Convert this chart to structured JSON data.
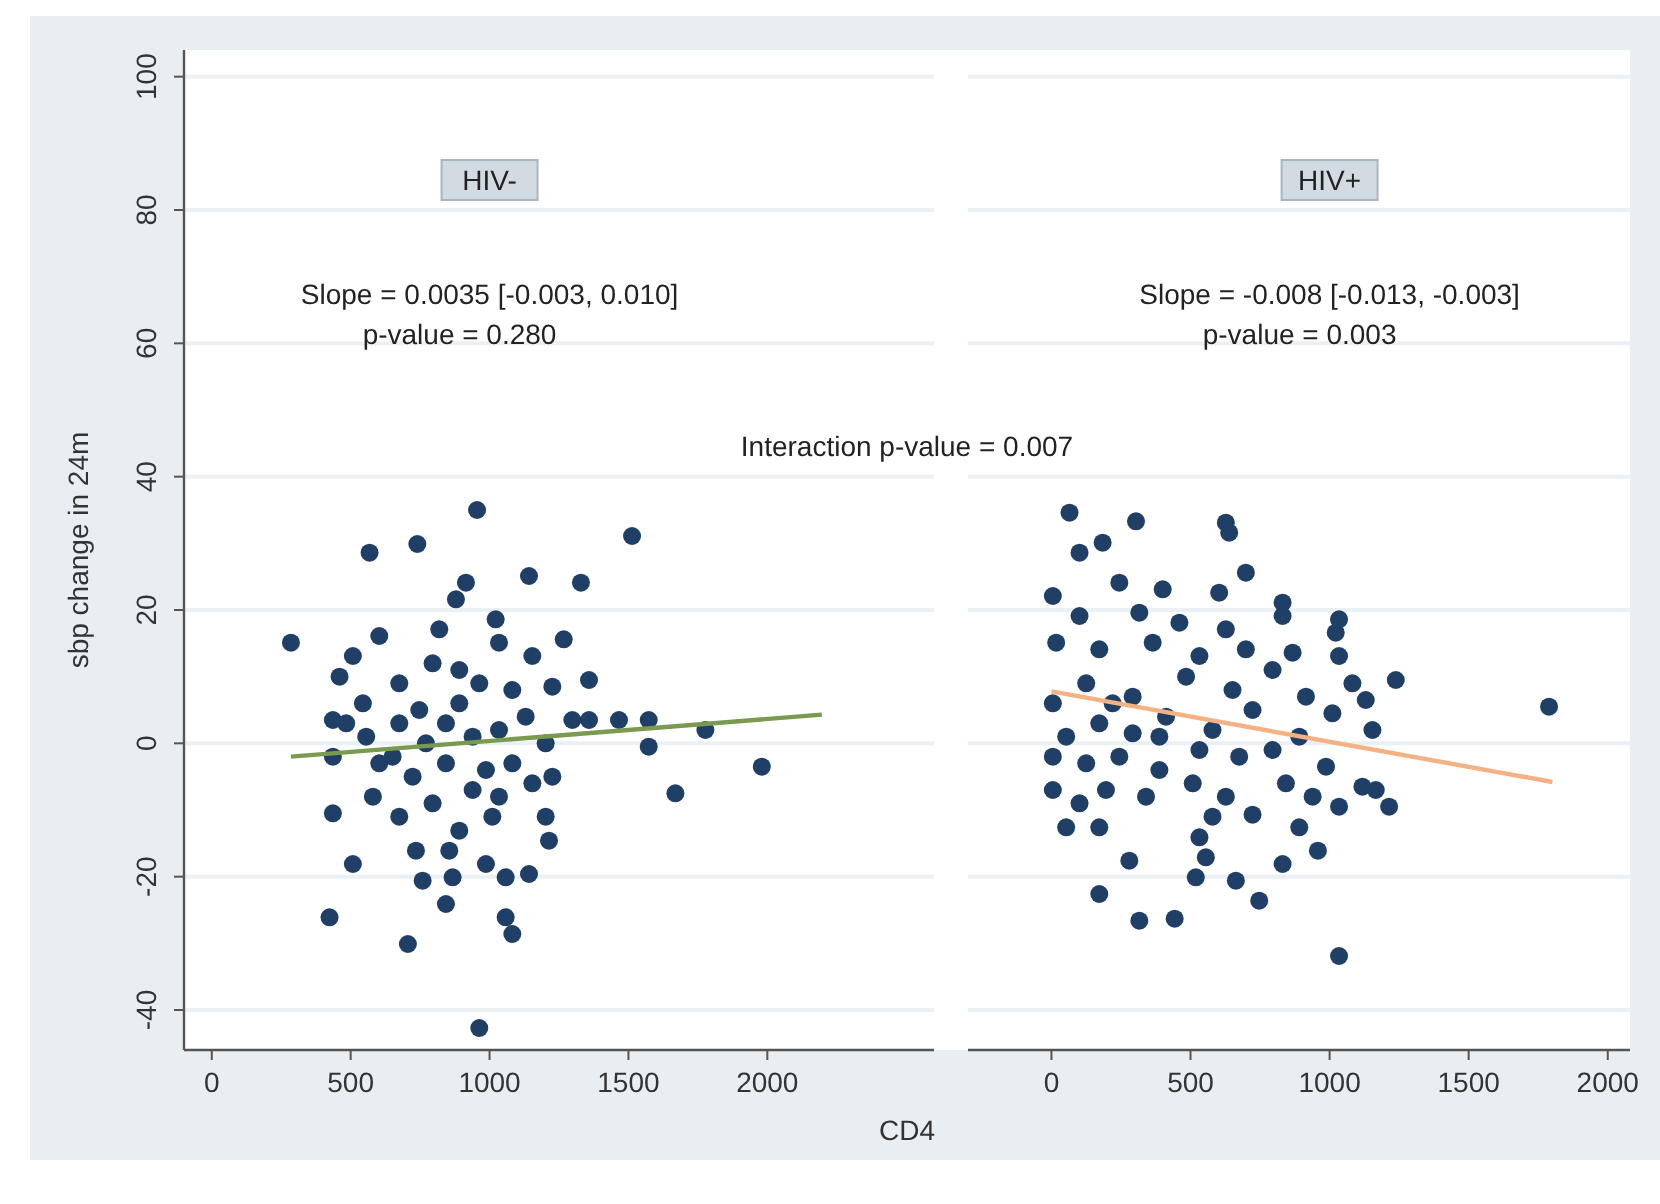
{
  "chart_data": [
    {
      "type": "scatter",
      "title": "HIV-",
      "ylabel": "sbp change in 24m",
      "xlabel": "CD4",
      "xlim": [
        -100,
        2600
      ],
      "xticks": [
        0,
        500,
        1000,
        1500,
        2000
      ],
      "ylim": [
        -46,
        104
      ],
      "yticks": [
        -40,
        -20,
        0,
        20,
        40,
        60,
        80,
        100
      ],
      "grid": "y",
      "annotations": [
        "Slope = 0.0035 [-0.003, 0.010]",
        "p-value = 0.280",
        "Interaction p-value = 0.007"
      ],
      "series": [
        {
          "marker": "circle",
          "color": "#1f3f66",
          "x": [
            955,
            568,
            740,
            1513,
            1142,
            1329,
            915,
            879,
            285,
            508,
            603,
            819,
            1022,
            1034,
            1154,
            1267,
            460,
            1358,
            436,
            544,
            675,
            795,
            891,
            963,
            1082,
            1226,
            1298,
            1358,
            1466,
            1573,
            1777,
            1573,
            1980,
            1669,
            436,
            556,
            675,
            747,
            843,
            939,
            1034,
            1130,
            1202,
            603,
            723,
            843,
            987,
            1082,
            1154,
            1226,
            436,
            580,
            675,
            795,
            891,
            1010,
            1202,
            1214,
            508,
            735,
            759,
            855,
            867,
            987,
            1058,
            1142,
            843,
            424,
            1058,
            1082,
            706,
            963,
            484,
            651,
            939,
            1034,
            891,
            771
          ],
          "values": [
            35,
            28.6,
            29.9,
            31.1,
            25.1,
            24.1,
            24.1,
            21.6,
            15.1,
            13.1,
            16.1,
            17.1,
            18.6,
            15.1,
            13.1,
            15.6,
            10,
            9.5,
            3.5,
            6,
            9,
            12,
            11,
            9,
            8,
            8.5,
            3.5,
            3.5,
            3.5,
            3.5,
            2,
            -0.5,
            -3.5,
            -7.5,
            -2,
            1,
            3,
            5,
            3,
            1,
            2,
            4,
            0,
            -3,
            -5,
            -3,
            -4,
            -3,
            -6,
            -5,
            -10.5,
            -8,
            -11,
            -9,
            -13.1,
            -11,
            -11,
            -14.6,
            -18.1,
            -16.1,
            -20.6,
            -16.1,
            -20.1,
            -18.1,
            -20.1,
            -19.6,
            -24.1,
            -26.1,
            -26.1,
            -28.6,
            -30.1,
            -42.7,
            3,
            -2,
            -7,
            -8,
            6,
            0
          ]
        },
        {
          "type": "line",
          "color": "#7a9a50",
          "x": [
            285,
            2196
          ],
          "values": [
            -2.0,
            4.3
          ]
        }
      ]
    },
    {
      "type": "scatter",
      "title": "HIV+",
      "xlim": [
        -300,
        2080
      ],
      "xticks": [
        0,
        500,
        1000,
        1500,
        2000
      ],
      "ylim": [
        -46,
        104
      ],
      "yticks": [
        -40,
        -20,
        0,
        20,
        40,
        60,
        80,
        100
      ],
      "grid": "y",
      "tick_labels": "x",
      "annotations": [
        "Slope = -0.008 [-0.013, -0.003]",
        "p-value = 0.003"
      ],
      "series": [
        {
          "marker": "circle",
          "color": "#1f3f66",
          "x": [
            65,
            304,
            627,
            639,
            101,
            184,
            699,
            244,
            400,
            603,
            831,
            831,
            1034,
            1022,
            5,
            101,
            316,
            460,
            627,
            17,
            172,
            364,
            532,
            699,
            867,
            1034,
            1238,
            1082,
            1130,
            1789,
            5,
            125,
            292,
            484,
            651,
            795,
            915,
            1010,
            1154,
            53,
            172,
            292,
            412,
            579,
            723,
            891,
            5,
            125,
            244,
            388,
            532,
            675,
            795,
            987,
            5,
            101,
            196,
            340,
            508,
            627,
            843,
            939,
            1118,
            1166,
            1214,
            1034,
            53,
            172,
            579,
            723,
            891,
            280,
            532,
            555,
            519,
            663,
            831,
            958,
            172,
            316,
            443,
            747,
            1034,
            388,
            220
          ],
          "values": [
            34.6,
            33.3,
            33.1,
            31.6,
            28.6,
            30.1,
            25.6,
            24.1,
            23.1,
            22.6,
            21.1,
            19.1,
            18.6,
            16.6,
            22.1,
            19.1,
            19.6,
            18.1,
            17.1,
            15.1,
            14.1,
            15.1,
            13.1,
            14.1,
            13.6,
            13.1,
            9.5,
            9,
            6.5,
            5.5,
            6,
            9,
            7,
            10,
            8,
            11,
            7,
            4.5,
            2,
            1,
            3,
            1.5,
            4,
            2,
            5,
            1,
            -2,
            -3,
            -2,
            -4,
            -1,
            -2,
            -1,
            -3.5,
            -7,
            -9,
            -7,
            -8,
            -6,
            -8,
            -6,
            -8,
            -6.5,
            -7,
            -9.5,
            -9.5,
            -12.6,
            -12.6,
            -11,
            -10.7,
            -12.6,
            -17.6,
            -14.1,
            -17.1,
            -20.1,
            -20.6,
            -18.1,
            -16.1,
            -22.6,
            -26.6,
            -26.3,
            -23.6,
            -31.9,
            1,
            6
          ]
        },
        {
          "type": "line",
          "color": "#f4b183",
          "x": [
            0,
            1801
          ],
          "values": [
            7.8,
            -5.8
          ]
        }
      ]
    }
  ]
}
